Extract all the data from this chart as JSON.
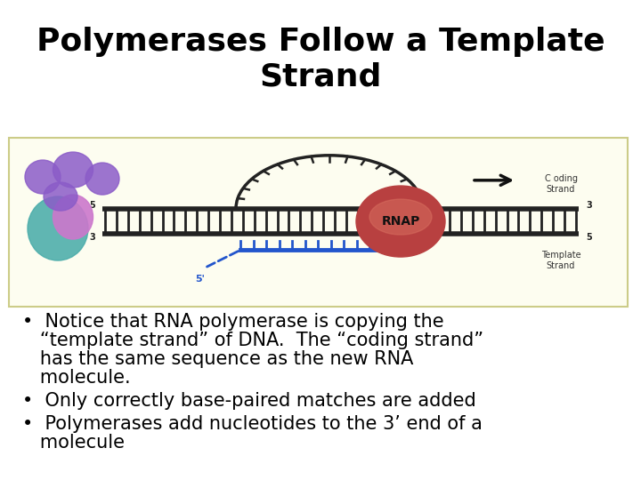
{
  "title": "Polymerases Follow a Template\nStrand",
  "title_fontsize": 26,
  "title_fontweight": "bold",
  "bg_color": "#ffffff",
  "bullet1_line1": "•  Notice that RNA polymerase is copying the",
  "bullet1_line2": "   “template strand” of DNA.  The “coding strand”",
  "bullet1_line3": "   has the same sequence as the new RNA",
  "bullet1_line4": "   molecule.",
  "bullet2": "•  Only correctly base-paired matches are added",
  "bullet3_line1": "•  Polymerases add nucleotides to the 3’ end of a",
  "bullet3_line2": "   molecule",
  "bullet_fontsize": 15,
  "diagram_box_color": "#fdfdf0",
  "diagram_box_edgecolor": "#cccc88",
  "strand_color": "#222222",
  "coding_strand_label": "C oding\nStrand",
  "template_strand_label": "Template\nStrand",
  "rnap_color": "#b84040",
  "rnap_dark": "#7a1a1a",
  "rnap_label": "RNAP",
  "arrow_color": "#111111",
  "rna_color": "#2255cc",
  "label_53_color": "#222222",
  "teal_blob": "#4aacaa",
  "purple_blob": "#8b5cc8",
  "pink_blob": "#cc77cc"
}
